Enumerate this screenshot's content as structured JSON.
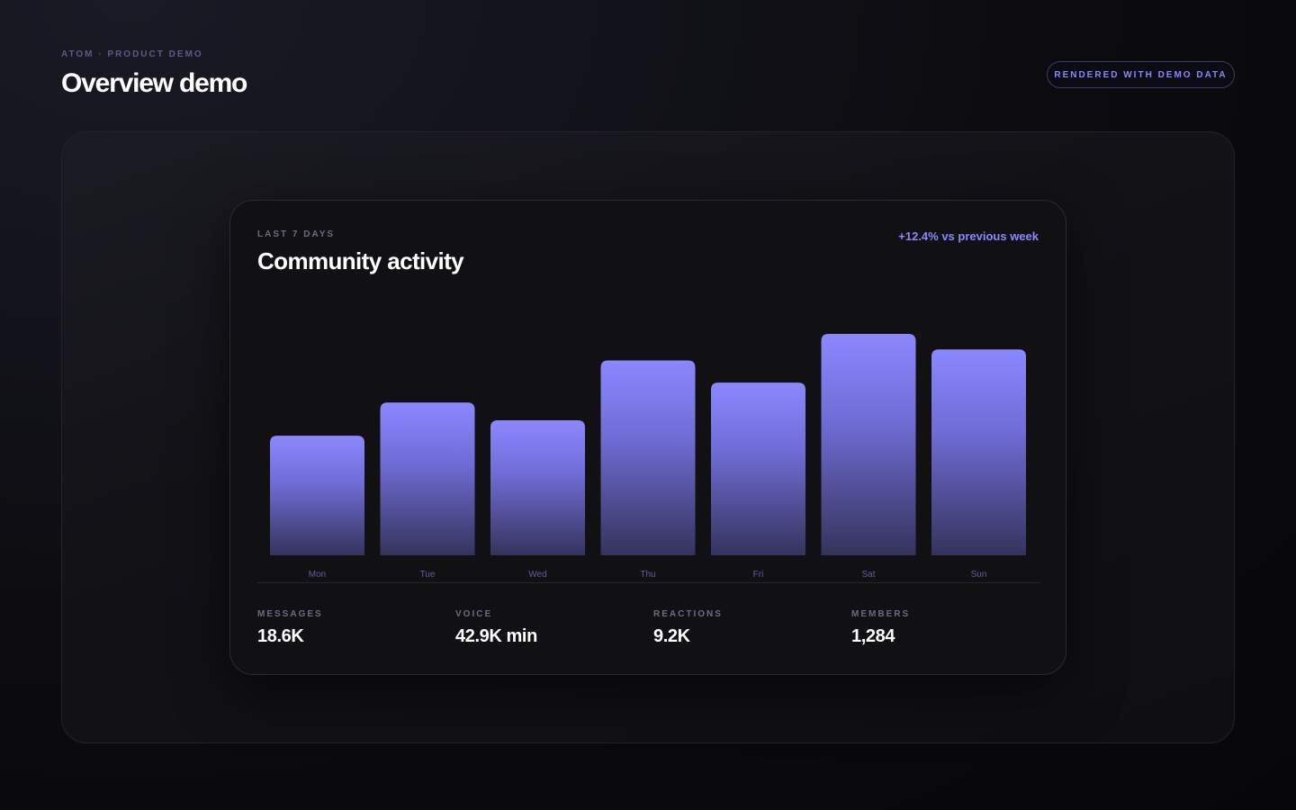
{
  "header": {
    "eyebrow": "ATOM · PRODUCT DEMO",
    "title": "Overview demo",
    "badge": "RENDERED WITH DEMO DATA"
  },
  "card": {
    "eyebrow": "LAST 7 DAYS",
    "title": "Community activity",
    "delta": "+12.4% vs previous week"
  },
  "chart_data": {
    "type": "bar",
    "categories": [
      "Mon",
      "Tue",
      "Wed",
      "Thu",
      "Fri",
      "Sat",
      "Sun"
    ],
    "values": [
      54,
      69,
      61,
      88,
      78,
      100,
      93
    ],
    "title": "",
    "xlabel": "",
    "ylabel": "",
    "ylim": [
      0,
      100
    ],
    "grid": false,
    "colors": {
      "top": "#8b88ff",
      "bottom": "#35335c"
    }
  },
  "stats": [
    {
      "label": "MESSAGES",
      "value": "18.6K"
    },
    {
      "label": "VOICE",
      "value": "42.9K min"
    },
    {
      "label": "REACTIONS",
      "value": "9.2K"
    },
    {
      "label": "MEMBERS",
      "value": "1,284"
    }
  ]
}
